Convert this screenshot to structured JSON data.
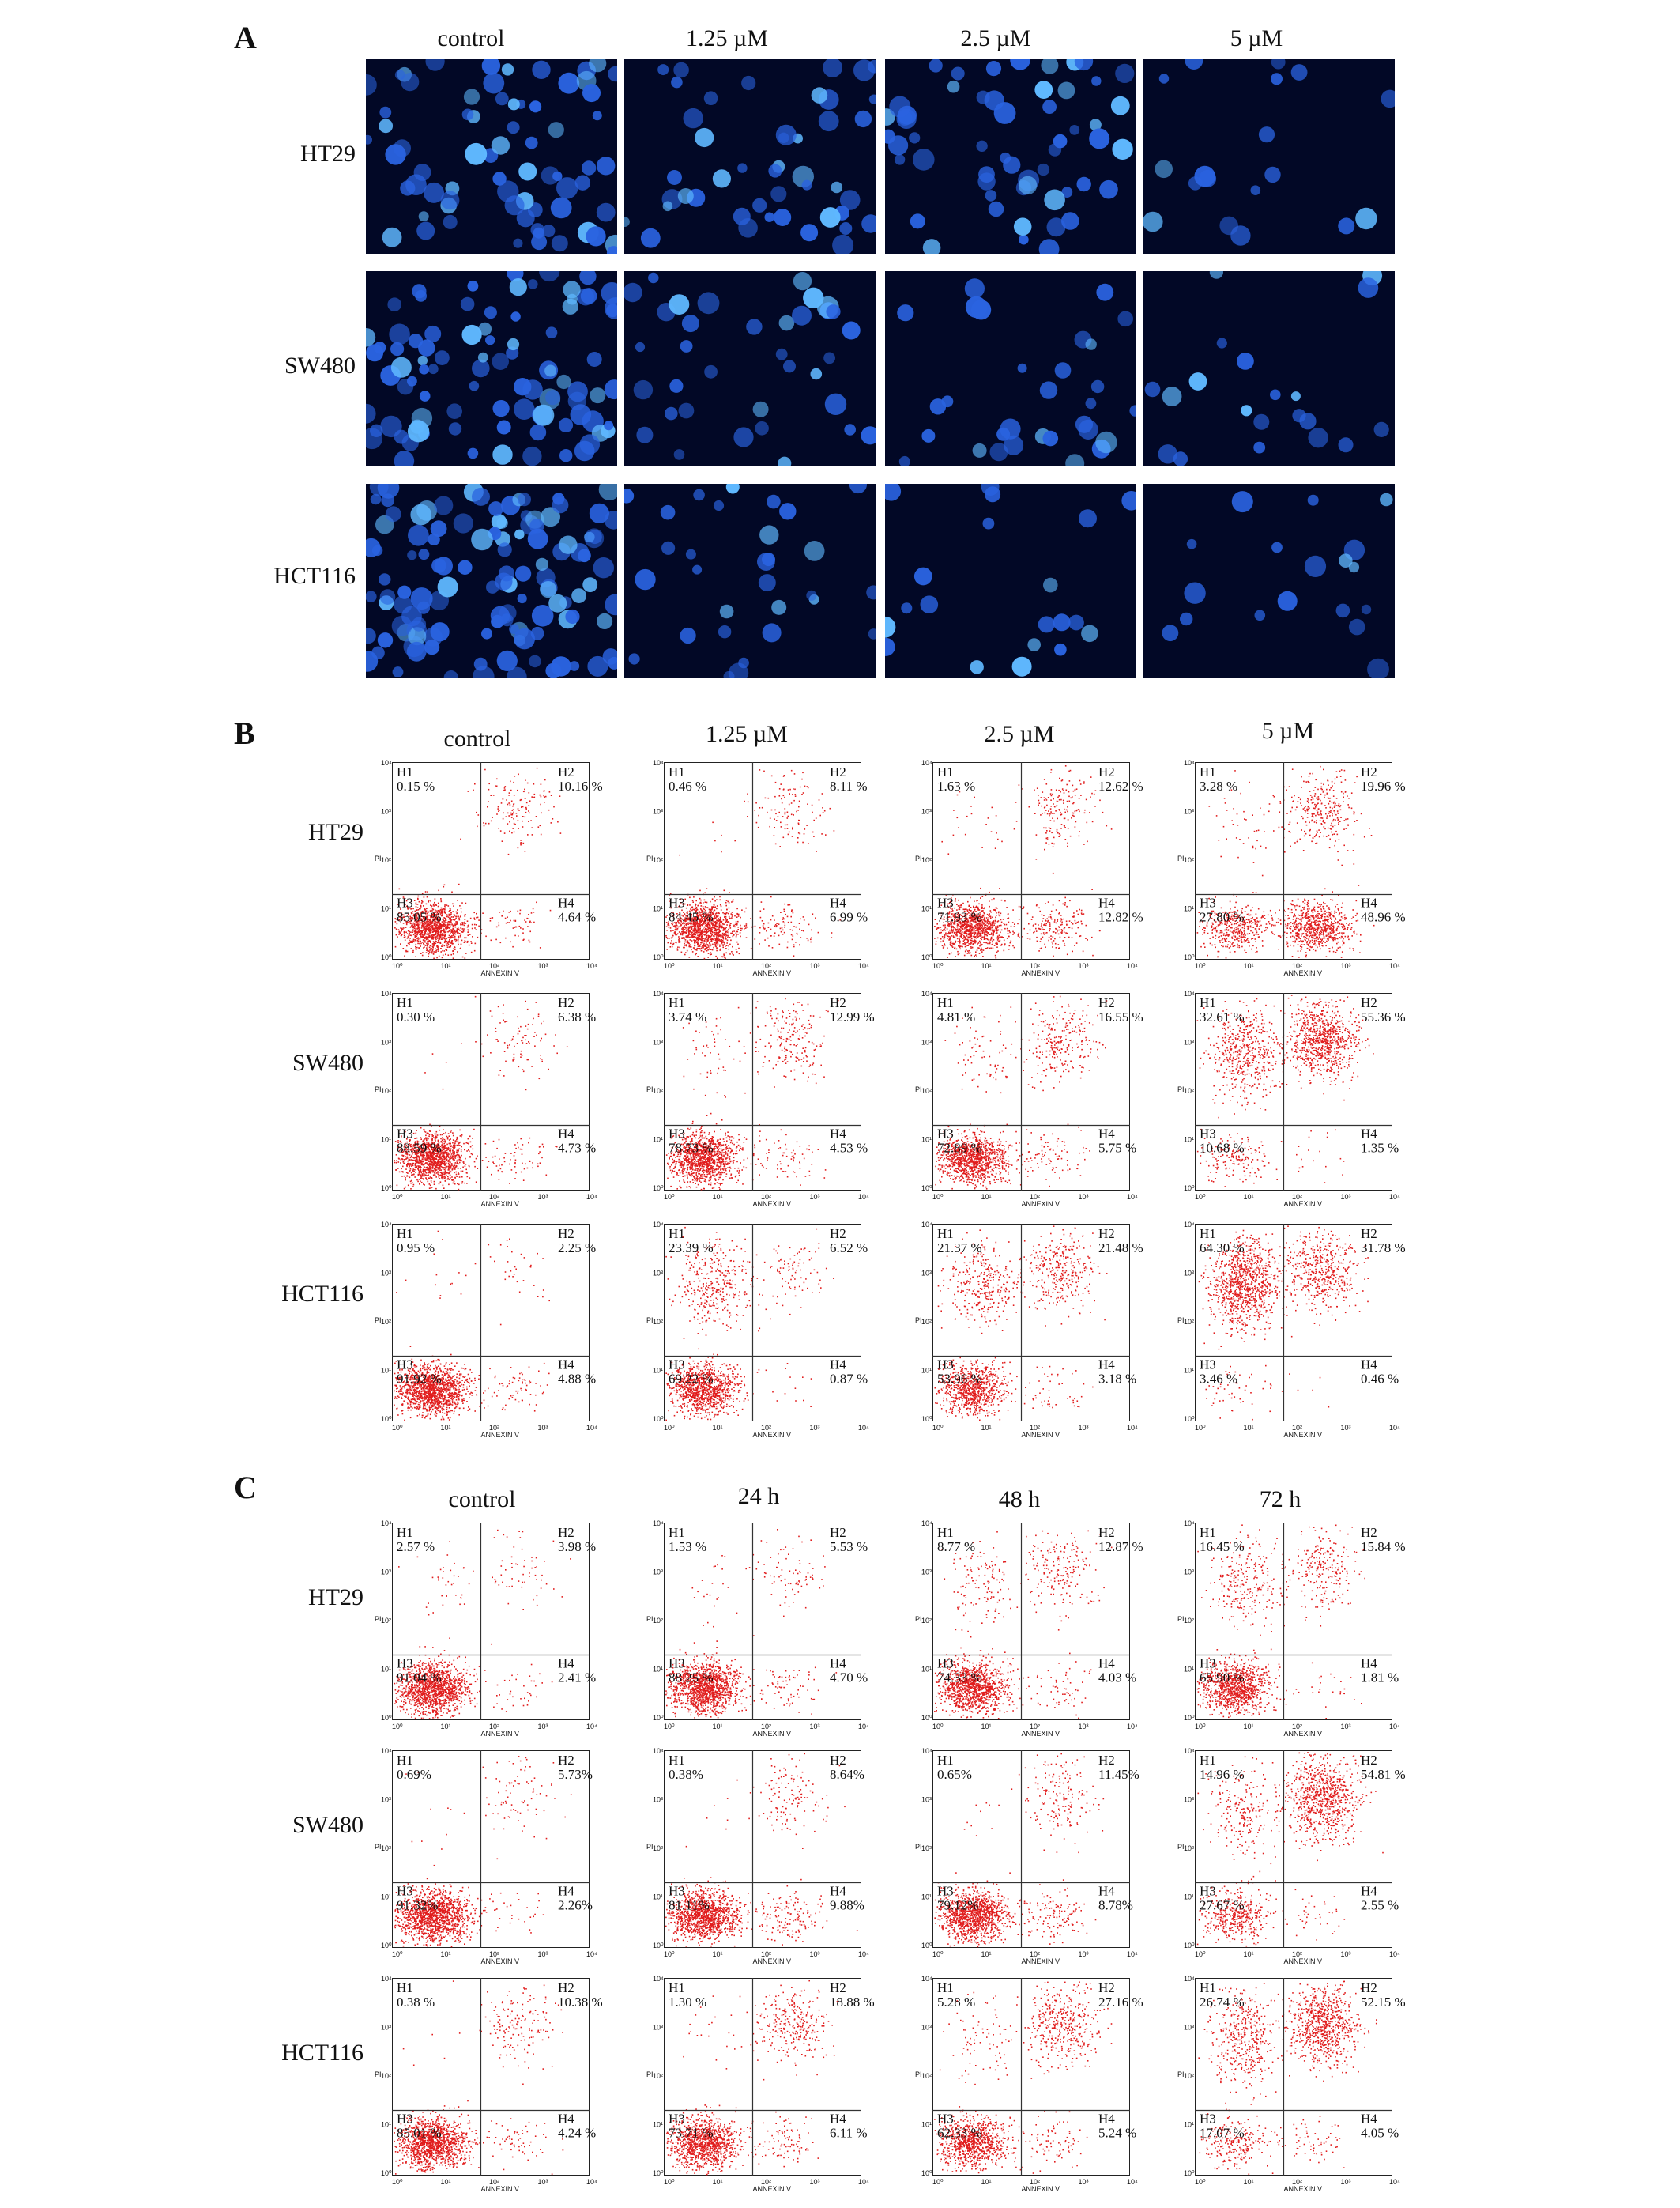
{
  "panels": [
    {
      "letter": "A"
    },
    {
      "letter": "B"
    },
    {
      "letter": "C"
    }
  ],
  "panelA": {
    "columns": [
      "control",
      "1.25 µM",
      "2.5 µM",
      "5 µM"
    ],
    "rows": [
      "HT29",
      "SW480",
      "HCT116"
    ],
    "colors": {
      "background": "#020826",
      "nucleus": "#2a63e0",
      "bright": "#5fb8ff"
    }
  },
  "axis": {
    "x_label": "ANNEXIN V",
    "y_label": "PI",
    "ticks": [
      "10⁰",
      "10¹",
      "10²",
      "10³",
      "10⁴"
    ]
  },
  "quadrant_labels": [
    "H1",
    "H2",
    "H3",
    "H4"
  ],
  "panelB": {
    "columns": [
      "control",
      "1.25 µM",
      "2.5 µM",
      "5 µM"
    ],
    "rows": [
      "HT29",
      "SW480",
      "HCT116"
    ]
  },
  "panelC": {
    "columns": [
      "control",
      "24 h",
      "48 h",
      "72 h"
    ],
    "rows": [
      "HT29",
      "SW480",
      "HCT116"
    ]
  },
  "chart_data": [
    {
      "type": "scatter",
      "panel": "B",
      "description_of_values": "quadrant percentages H1,H2,H3,H4",
      "rows": [
        "HT29",
        "SW480",
        "HCT116"
      ],
      "columns": [
        "control",
        "1.25 µM",
        "2.5 µM",
        "5 µM"
      ],
      "values": [
        [
          [
            "0.15 %",
            "10.16 %",
            "85.05 %",
            "4.64 %"
          ],
          [
            "0.46 %",
            "8.11 %",
            "84.45 %",
            "6.99 %"
          ],
          [
            "1.63 %",
            "12.62 %",
            "71.93 %",
            "12.82 %"
          ],
          [
            "3.28 %",
            "19.96 %",
            "27.80 %",
            "48.96 %"
          ]
        ],
        [
          [
            "0.30 %",
            "6.38 %",
            "88.59 %",
            "4.73 %"
          ],
          [
            "3.74 %",
            "12.99 %",
            "78.73 %",
            "4.53 %"
          ],
          [
            "4.81 %",
            "16.55 %",
            "72.89 %",
            "5.75 %"
          ],
          [
            "32.61 %",
            "55.36 %",
            "10.68 %",
            "1.35 %"
          ]
        ],
        [
          [
            "0.95 %",
            "2.25 %",
            "91.92 %",
            "4.88 %"
          ],
          [
            "23.39 %",
            "6.52 %",
            "69.22 %",
            "0.87 %"
          ],
          [
            "21.37 %",
            "21.48 %",
            "53.96 %",
            "3.18 %"
          ],
          [
            "64.30 %",
            "31.78 %",
            "3.46 %",
            "0.46 %"
          ]
        ]
      ],
      "xlabel": "ANNEXIN V",
      "ylabel": "PI",
      "xscale": "log",
      "xlim": [
        1,
        10000
      ],
      "ylim": [
        1,
        10000
      ]
    },
    {
      "type": "scatter",
      "panel": "C",
      "description_of_values": "quadrant percentages H1,H2,H3,H4",
      "rows": [
        "HT29",
        "SW480",
        "HCT116"
      ],
      "columns": [
        "control",
        "24 h",
        "48 h",
        "72 h"
      ],
      "values": [
        [
          [
            "2.57 %",
            "3.98 %",
            "91.04 %",
            "2.41 %"
          ],
          [
            "1.53 %",
            "5.53 %",
            "88.25 %",
            "4.70 %"
          ],
          [
            "8.77 %",
            "12.87 %",
            "74.33 %",
            "4.03 %"
          ],
          [
            "16.45 %",
            "15.84 %",
            "65.90 %",
            "1.81 %"
          ]
        ],
        [
          [
            "0.69%",
            "5.73%",
            "91.32%",
            "2.26%"
          ],
          [
            "0.38%",
            "8.64%",
            "81.11%",
            "9.88%"
          ],
          [
            "0.65%",
            "11.45%",
            "79.12%",
            "8.78%"
          ],
          [
            "14.96 %",
            "54.81 %",
            "27.67 %",
            "2.55 %"
          ]
        ],
        [
          [
            "0.38 %",
            "10.38 %",
            "85.01 %",
            "4.24 %"
          ],
          [
            "1.30 %",
            "18.88 %",
            "73.71 %",
            "6.11 %"
          ],
          [
            "5.28 %",
            "27.16 %",
            "62.33 %",
            "5.24 %"
          ],
          [
            "26.74 %",
            "52.15 %",
            "17.07 %",
            "4.05 %"
          ]
        ]
      ],
      "xlabel": "ANNEXIN V",
      "ylabel": "PI",
      "xscale": "log",
      "xlim": [
        1,
        10000
      ],
      "ylim": [
        1,
        10000
      ]
    }
  ]
}
